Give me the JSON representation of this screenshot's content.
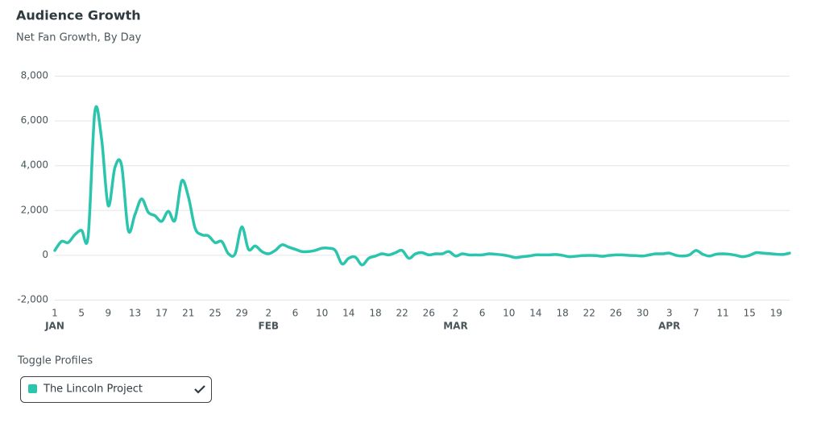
{
  "chart_data": {
    "type": "line",
    "title": "Audience Growth",
    "subtitle": "Net Fan Growth, By Day",
    "categories": [
      "1",
      null,
      null,
      null,
      "5",
      null,
      null,
      null,
      "9",
      null,
      null,
      null,
      "13",
      null,
      null,
      null,
      "17",
      null,
      null,
      null,
      "21",
      null,
      null,
      null,
      "25",
      null,
      null,
      null,
      "29",
      null,
      null,
      null,
      "2",
      null,
      null,
      null,
      "6",
      null,
      null,
      null,
      "10",
      null,
      null,
      null,
      "14",
      null,
      null,
      null,
      "18",
      null,
      null,
      null,
      "22",
      null,
      null,
      null,
      "26",
      null,
      null,
      null,
      "2",
      null,
      null,
      null,
      "6",
      null,
      null,
      null,
      "10",
      null,
      null,
      null,
      "14",
      null,
      null,
      null,
      "18",
      null,
      null,
      null,
      "22",
      null,
      null,
      null,
      "26",
      null,
      null,
      null,
      "30",
      null,
      null,
      null,
      "3",
      null,
      null,
      null,
      "7",
      null,
      null,
      null,
      "11",
      null,
      null,
      null,
      "15",
      null,
      null,
      null,
      "19",
      null,
      null
    ],
    "month_labels": [
      "JAN",
      "FEB",
      "MAR",
      "APR"
    ],
    "series": [
      {
        "name": "The Lincoln Project",
        "color": "#2bc4ad",
        "values": [
          200,
          600,
          550,
          900,
          1100,
          850,
          6400,
          5200,
          2200,
          3900,
          4000,
          1100,
          1800,
          2500,
          1900,
          1750,
          1500,
          1950,
          1550,
          3300,
          2600,
          1200,
          900,
          850,
          550,
          600,
          50,
          50,
          1250,
          250,
          400,
          150,
          50,
          200,
          450,
          350,
          250,
          150,
          150,
          200,
          300,
          300,
          200,
          -400,
          -150,
          -100,
          -450,
          -150,
          -50,
          50,
          0,
          100,
          200,
          -150,
          50,
          100,
          0,
          50,
          50,
          150,
          -50,
          50,
          0,
          0,
          0,
          50,
          30,
          0,
          -50,
          -120,
          -80,
          -50,
          0,
          0,
          0,
          20,
          -20,
          -80,
          -60,
          -30,
          -20,
          -30,
          -60,
          -20,
          0,
          0,
          -20,
          -30,
          -50,
          0,
          50,
          50,
          80,
          -20,
          -50,
          0,
          200,
          30,
          -50,
          30,
          50,
          30,
          -20,
          -80,
          -20,
          100,
          80,
          60,
          30,
          20,
          80
        ]
      }
    ],
    "ylim": [
      -2000,
      8000
    ],
    "yticks": [
      {
        "value": -2000,
        "label": "-2,000"
      },
      0,
      {
        "value": 2000,
        "label": "2,000"
      },
      {
        "value": 4000,
        "label": "4,000"
      },
      {
        "value": 6000,
        "label": "6,000"
      },
      {
        "value": 8000,
        "label": "8,000"
      }
    ],
    "grid": true,
    "legend_title": "Toggle Profiles"
  }
}
